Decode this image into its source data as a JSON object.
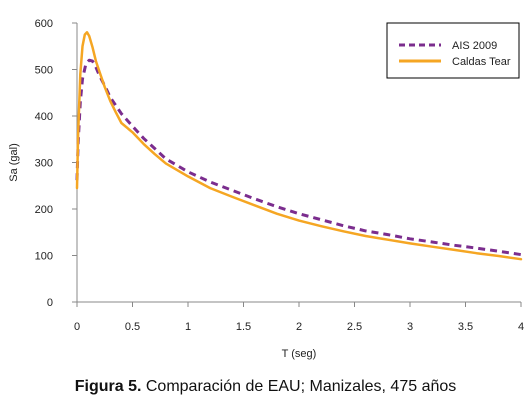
{
  "chart_data": {
    "type": "line",
    "title": "",
    "xlabel": "T (seg)",
    "ylabel": "Sa (gal)",
    "xlim": [
      0,
      4
    ],
    "ylim": [
      0,
      600
    ],
    "x_ticks": [
      0,
      0.5,
      1,
      1.5,
      2,
      2.5,
      3,
      3.5,
      4
    ],
    "x_tick_labels": [
      "0",
      "0.5",
      "1",
      "1.5",
      "2",
      "2.5",
      "3",
      "3.5",
      "4"
    ],
    "y_ticks": [
      0,
      100,
      200,
      300,
      400,
      500,
      600
    ],
    "y_tick_labels": [
      "0",
      "100",
      "200",
      "300",
      "400",
      "500",
      "600"
    ],
    "grid": false,
    "legend_position": "top-right",
    "series": [
      {
        "name": "AIS 2009",
        "color": "#7b2d8e",
        "style": "dashed",
        "x": [
          0,
          0.01,
          0.03,
          0.05,
          0.08,
          0.11,
          0.14,
          0.17,
          0.2,
          0.25,
          0.3,
          0.4,
          0.5,
          0.6,
          0.7,
          0.8,
          1.0,
          1.2,
          1.4,
          1.6,
          1.8,
          2.0,
          2.2,
          2.4,
          2.6,
          2.8,
          3.0,
          3.2,
          3.4,
          3.6,
          3.8,
          4.0
        ],
        "y": [
          262,
          340,
          430,
          480,
          512,
          520,
          518,
          505,
          488,
          465,
          440,
          405,
          378,
          352,
          330,
          308,
          280,
          258,
          240,
          222,
          205,
          190,
          177,
          164,
          153,
          145,
          136,
          129,
          122,
          116,
          109,
          102
        ]
      },
      {
        "name": "Caldas Tear",
        "color": "#f5a623",
        "style": "solid",
        "x": [
          0,
          0.01,
          0.03,
          0.05,
          0.07,
          0.09,
          0.11,
          0.14,
          0.17,
          0.2,
          0.25,
          0.3,
          0.35,
          0.4,
          0.5,
          0.6,
          0.7,
          0.8,
          1.0,
          1.2,
          1.4,
          1.6,
          1.8,
          2.0,
          2.2,
          2.4,
          2.6,
          2.8,
          3.0,
          3.2,
          3.4,
          3.6,
          3.8,
          4.0
        ],
        "y": [
          245,
          360,
          490,
          550,
          575,
          580,
          572,
          548,
          518,
          497,
          462,
          432,
          408,
          385,
          365,
          340,
          318,
          298,
          270,
          245,
          226,
          208,
          190,
          175,
          163,
          152,
          142,
          134,
          126,
          119,
          112,
          105,
          99,
          92
        ]
      }
    ]
  },
  "caption": {
    "label": "Figura 5.",
    "text": " Comparación de EAU; Manizales, 475 años"
  }
}
